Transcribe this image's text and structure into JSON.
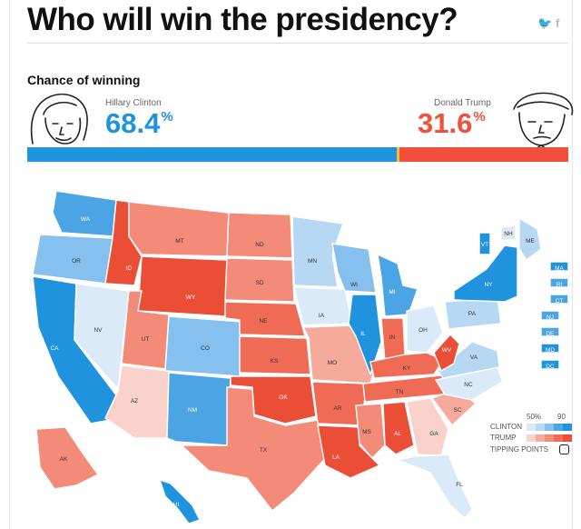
{
  "headline": "Who will win the presidency?",
  "share": {
    "twitter_icon": "twitter-icon",
    "facebook_icon": "facebook-icon",
    "twitter_glyph": "🐦",
    "facebook_glyph": "f"
  },
  "section_title": "Chance of winning",
  "candidates": {
    "clinton": {
      "name": "Hillary Clinton",
      "pct": "68.4",
      "color": "#1f93dd"
    },
    "trump": {
      "name": "Donald Trump",
      "pct": "31.6",
      "color": "#f0503b"
    }
  },
  "chart_data": {
    "type": "bar",
    "title": "Chance of winning",
    "categories": [
      "Hillary Clinton",
      "Donald Trump"
    ],
    "values": [
      68.4,
      31.6
    ],
    "unit": "%",
    "stacked": true,
    "xlim": [
      0,
      100
    ]
  },
  "map": {
    "type": "choropleth",
    "palette": {
      "c5": "#1f93dd",
      "c4": "#4ba4e4",
      "c3": "#85c0ee",
      "c2": "#b6d8f3",
      "c1": "#dbeaf8",
      "t1": "#f9d3cb",
      "t2": "#f6aa9b",
      "t3": "#f48a78",
      "t4": "#f06b55",
      "t5": "#ea4e36"
    },
    "states": [
      {
        "abbr": "WA",
        "lean": "c4"
      },
      {
        "abbr": "OR",
        "lean": "c3"
      },
      {
        "abbr": "CA",
        "lean": "c5"
      },
      {
        "abbr": "NV",
        "lean": "c1"
      },
      {
        "abbr": "ID",
        "lean": "t5"
      },
      {
        "abbr": "MT",
        "lean": "t3"
      },
      {
        "abbr": "WY",
        "lean": "t5"
      },
      {
        "abbr": "UT",
        "lean": "t3"
      },
      {
        "abbr": "AZ",
        "lean": "t1"
      },
      {
        "abbr": "CO",
        "lean": "c3"
      },
      {
        "abbr": "NM",
        "lean": "c4"
      },
      {
        "abbr": "ND",
        "lean": "t3"
      },
      {
        "abbr": "SD",
        "lean": "t3"
      },
      {
        "abbr": "NE",
        "lean": "t4"
      },
      {
        "abbr": "KS",
        "lean": "t4"
      },
      {
        "abbr": "OK",
        "lean": "t5"
      },
      {
        "abbr": "TX",
        "lean": "t3"
      },
      {
        "abbr": "MN",
        "lean": "c2"
      },
      {
        "abbr": "IA",
        "lean": "c1"
      },
      {
        "abbr": "MO",
        "lean": "t2"
      },
      {
        "abbr": "AR",
        "lean": "t4"
      },
      {
        "abbr": "LA",
        "lean": "t5"
      },
      {
        "abbr": "WI",
        "lean": "c3"
      },
      {
        "abbr": "IL",
        "lean": "c5"
      },
      {
        "abbr": "MI",
        "lean": "c4"
      },
      {
        "abbr": "IN",
        "lean": "t4"
      },
      {
        "abbr": "OH",
        "lean": "c1"
      },
      {
        "abbr": "KY",
        "lean": "t4"
      },
      {
        "abbr": "TN",
        "lean": "t4"
      },
      {
        "abbr": "MS",
        "lean": "t3"
      },
      {
        "abbr": "AL",
        "lean": "t5"
      },
      {
        "abbr": "GA",
        "lean": "t1"
      },
      {
        "abbr": "FL",
        "lean": "c1"
      },
      {
        "abbr": "SC",
        "lean": "t2"
      },
      {
        "abbr": "NC",
        "lean": "c1"
      },
      {
        "abbr": "VA",
        "lean": "c2"
      },
      {
        "abbr": "WV",
        "lean": "t5"
      },
      {
        "abbr": "PA",
        "lean": "c2"
      },
      {
        "abbr": "NY",
        "lean": "c5"
      },
      {
        "abbr": "VT",
        "lean": "c5"
      },
      {
        "abbr": "NH",
        "lean": "c1"
      },
      {
        "abbr": "ME",
        "lean": "c2"
      },
      {
        "abbr": "MA",
        "lean": "c5"
      },
      {
        "abbr": "RI",
        "lean": "c4"
      },
      {
        "abbr": "CT",
        "lean": "c4"
      },
      {
        "abbr": "NJ",
        "lean": "c4"
      },
      {
        "abbr": "DE",
        "lean": "c4"
      },
      {
        "abbr": "MD",
        "lean": "c5"
      },
      {
        "abbr": "DC",
        "lean": "c5"
      },
      {
        "abbr": "AK",
        "lean": "t3"
      },
      {
        "abbr": "HI",
        "lean": "c5"
      }
    ]
  },
  "legend": {
    "tick_low": "50%",
    "tick_high": "90",
    "clinton_label": "CLINTON",
    "trump_label": "TRUMP",
    "tipping_label": "TIPPING POINTS",
    "clinton_ramp": [
      "#dbeaf8",
      "#b6d8f3",
      "#85c0ee",
      "#4ba4e4",
      "#1f93dd"
    ],
    "trump_ramp": [
      "#f9d3cb",
      "#f6aa9b",
      "#f48a78",
      "#f06b55",
      "#ea4e36"
    ]
  }
}
